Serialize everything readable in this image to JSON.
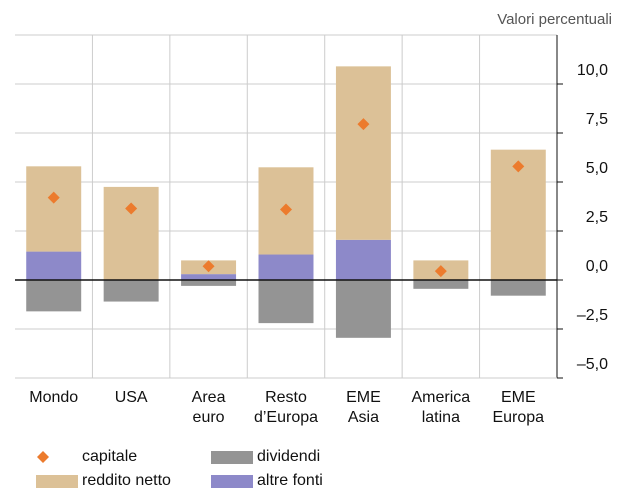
{
  "chart_data": {
    "type": "bar",
    "unit_label": "Valori percentuali",
    "categories": [
      "Mondo",
      "USA",
      "Area\neuro",
      "Resto\nd’Europa",
      "EME\nAsia",
      "America\nlatina",
      "EME\nEuropa"
    ],
    "series": [
      {
        "name": "reddito netto",
        "color": "#dcc197",
        "kind": "bar",
        "values": [
          4.35,
          4.75,
          0.7,
          4.45,
          8.85,
          1.0,
          6.65
        ]
      },
      {
        "name": "altre fonti",
        "color": "#8d89c9",
        "kind": "bar",
        "values": [
          1.45,
          0,
          0.3,
          1.3,
          2.05,
          0,
          0
        ]
      },
      {
        "name": "dividendi",
        "color": "#949494",
        "kind": "bar",
        "values": [
          -1.6,
          -1.1,
          -0.3,
          -2.2,
          -2.95,
          -0.45,
          -0.8
        ]
      },
      {
        "name": "capitale",
        "color": "#ec7b2d",
        "kind": "marker",
        "values": [
          4.2,
          3.65,
          0.7,
          3.6,
          7.95,
          0.45,
          5.8
        ]
      }
    ],
    "ylim": [
      -5,
      12.5
    ],
    "yticks": [
      {
        "value": -5,
        "label": "–5,0"
      },
      {
        "value": -2.5,
        "label": "–2,5"
      },
      {
        "value": 0,
        "label": "0,0"
      },
      {
        "value": 2.5,
        "label": "2,5"
      },
      {
        "value": 5,
        "label": "5,0"
      },
      {
        "value": 7.5,
        "label": "7,5"
      },
      {
        "value": 10,
        "label": "10,0"
      }
    ],
    "grid": true
  }
}
